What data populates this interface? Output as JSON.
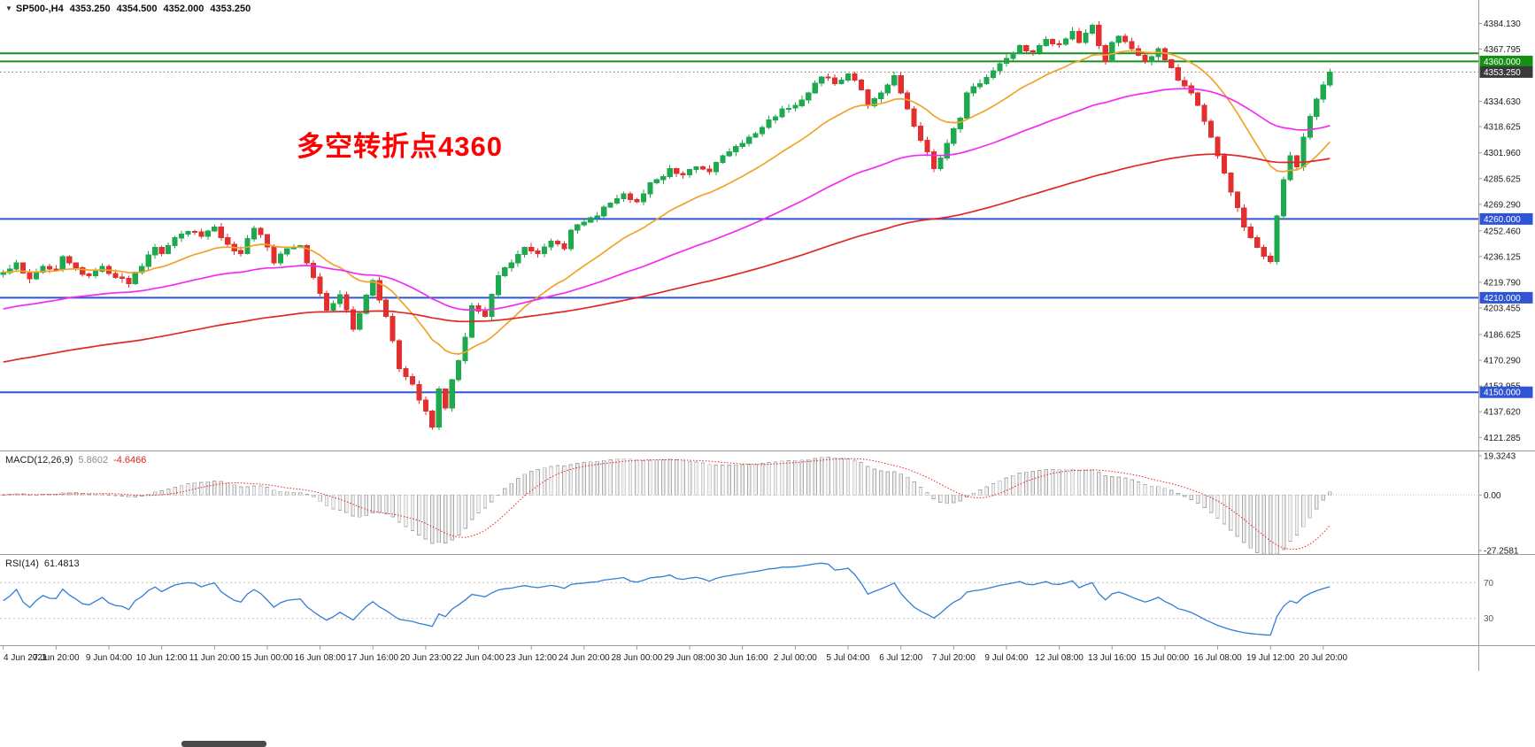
{
  "window": {
    "symbol_line": {
      "icon": "▼",
      "symbol": "SP500-,H4",
      "open": "4353.250",
      "high": "4354.500",
      "low": "4352.000",
      "close": "4353.250"
    },
    "annotation": {
      "text": "多空转折点4360",
      "color": "#ff0000"
    }
  },
  "chart_data": {
    "type": "candlestick",
    "symbol": "SP500-",
    "timeframe": "H4",
    "slots": 224,
    "bars": 202,
    "noise_amp": 1.6,
    "colors": {
      "up": "#1fa94e",
      "down": "#e23030",
      "axis_text": "#1b1b1b",
      "separator": "#9a9a9a"
    },
    "y_axis": {
      "min": 4113,
      "max": 4399,
      "ticks": [
        [
          "4384.130",
          4384.13,
          "plain"
        ],
        [
          "4367.795",
          4367.795,
          "plain"
        ],
        [
          "4360.000",
          4360.0,
          "green"
        ],
        [
          "4353.250",
          4353.25,
          "current"
        ],
        [
          "4334.630",
          4334.63,
          "plain"
        ],
        [
          "4318.625",
          4318.625,
          "plain"
        ],
        [
          "4301.960",
          4301.96,
          "plain"
        ],
        [
          "4285.625",
          4285.625,
          "plain"
        ],
        [
          "4269.290",
          4269.29,
          "plain"
        ],
        [
          "4260.000",
          4260.0,
          "blue"
        ],
        [
          "4252.460",
          4252.46,
          "plain"
        ],
        [
          "4236.125",
          4236.125,
          "plain"
        ],
        [
          "4219.790",
          4219.79,
          "plain"
        ],
        [
          "4210.000",
          4210.0,
          "blue"
        ],
        [
          "4203.455",
          4203.455,
          "plain"
        ],
        [
          "4186.625",
          4186.625,
          "plain"
        ],
        [
          "4170.290",
          4170.29,
          "plain"
        ],
        [
          "4153.955",
          4153.955,
          "plain"
        ],
        [
          "4150.000",
          4150.0,
          "blue"
        ],
        [
          "4137.620",
          4137.62,
          "plain"
        ],
        [
          "4121.285",
          4121.285,
          "plain"
        ]
      ]
    },
    "levels": [
      {
        "price": 4365.2,
        "color": "#1a8f1a",
        "width": 2,
        "badge": null,
        "badge_color": null
      },
      {
        "price": 4360.0,
        "color": "#1a8f1a",
        "width": 2,
        "badge": "4360.000",
        "badge_color": "#149114"
      },
      {
        "price": 4260.0,
        "color": "#2f55d4",
        "width": 2,
        "badge": "4260.000",
        "badge_color": "#2f55d4"
      },
      {
        "price": 4210.0,
        "color": "#2f55d4",
        "width": 2,
        "badge": "4210.000",
        "badge_color": "#2f55d4"
      },
      {
        "price": 4150.0,
        "color": "#2f55d4",
        "width": 2,
        "badge": "4150.000",
        "badge_color": "#2f55d4"
      }
    ],
    "current_price": {
      "value": 4353.25,
      "label": "4353.250",
      "badge_color": "#3a3a3a",
      "line_color": "#a06060"
    },
    "moving_averages": [
      {
        "name": "ma-fast",
        "period": 20,
        "color": "#efa32a",
        "seed": null
      },
      {
        "name": "ma-medium",
        "period": 64,
        "color": "#f32cf3",
        "seed": 4165
      },
      {
        "name": "ma-slow",
        "period": 150,
        "color": "#e02828",
        "seed": 4140
      }
    ],
    "price_anchors": [
      [
        0,
        4226
      ],
      [
        2,
        4232
      ],
      [
        4,
        4222
      ],
      [
        6,
        4230
      ],
      [
        8,
        4228
      ],
      [
        9,
        4236
      ],
      [
        11,
        4229
      ],
      [
        13,
        4224
      ],
      [
        15,
        4230
      ],
      [
        17,
        4223
      ],
      [
        19,
        4219
      ],
      [
        21,
        4230
      ],
      [
        23,
        4242
      ],
      [
        24,
        4238
      ],
      [
        26,
        4248
      ],
      [
        28,
        4252
      ],
      [
        30,
        4249
      ],
      [
        32,
        4255
      ],
      [
        34,
        4244
      ],
      [
        36,
        4238
      ],
      [
        38,
        4254
      ],
      [
        39,
        4250
      ],
      [
        41,
        4232
      ],
      [
        43,
        4241
      ],
      [
        45,
        4243
      ],
      [
        47,
        4223
      ],
      [
        49,
        4202
      ],
      [
        51,
        4212
      ],
      [
        53,
        4190
      ],
      [
        54,
        4200
      ],
      [
        56,
        4221
      ],
      [
        58,
        4198
      ],
      [
        60,
        4165
      ],
      [
        62,
        4155
      ],
      [
        64,
        4138
      ],
      [
        65,
        4128
      ],
      [
        66,
        4152
      ],
      [
        67,
        4140
      ],
      [
        68,
        4158
      ],
      [
        70,
        4185
      ],
      [
        71,
        4205
      ],
      [
        73,
        4198
      ],
      [
        75,
        4224
      ],
      [
        77,
        4232
      ],
      [
        79,
        4242
      ],
      [
        81,
        4238
      ],
      [
        83,
        4246
      ],
      [
        85,
        4241
      ],
      [
        86,
        4253
      ],
      [
        88,
        4258
      ],
      [
        90,
        4262
      ],
      [
        92,
        4270
      ],
      [
        94,
        4276
      ],
      [
        96,
        4271
      ],
      [
        98,
        4283
      ],
      [
        100,
        4287
      ],
      [
        101,
        4292
      ],
      [
        103,
        4288
      ],
      [
        105,
        4293
      ],
      [
        107,
        4290
      ],
      [
        109,
        4300
      ],
      [
        111,
        4306
      ],
      [
        113,
        4312
      ],
      [
        115,
        4318
      ],
      [
        116,
        4323
      ],
      [
        118,
        4330
      ],
      [
        120,
        4332
      ],
      [
        122,
        4340
      ],
      [
        124,
        4350
      ],
      [
        126,
        4346
      ],
      [
        128,
        4352
      ],
      [
        130,
        4342
      ],
      [
        131,
        4332
      ],
      [
        133,
        4340
      ],
      [
        135,
        4351
      ],
      [
        137,
        4330
      ],
      [
        139,
        4310
      ],
      [
        141,
        4292
      ],
      [
        143,
        4308
      ],
      [
        145,
        4324
      ],
      [
        146,
        4340
      ],
      [
        148,
        4346
      ],
      [
        150,
        4354
      ],
      [
        152,
        4362
      ],
      [
        154,
        4370
      ],
      [
        156,
        4366
      ],
      [
        158,
        4374
      ],
      [
        160,
        4371
      ],
      [
        162,
        4379
      ],
      [
        163,
        4372
      ],
      [
        165,
        4383
      ],
      [
        166,
        4370
      ],
      [
        167,
        4360
      ],
      [
        168,
        4372
      ],
      [
        169,
        4376
      ],
      [
        171,
        4368
      ],
      [
        173,
        4360
      ],
      [
        175,
        4368
      ],
      [
        177,
        4356
      ],
      [
        178,
        4348
      ],
      [
        180,
        4340
      ],
      [
        182,
        4322
      ],
      [
        184,
        4300
      ],
      [
        186,
        4277
      ],
      [
        188,
        4255
      ],
      [
        190,
        4242
      ],
      [
        192,
        4233
      ],
      [
        193,
        4262
      ],
      [
        194,
        4285
      ],
      [
        195,
        4300
      ],
      [
        196,
        4293
      ],
      [
        197,
        4312
      ],
      [
        198,
        4325
      ],
      [
        199,
        4336
      ],
      [
        200,
        4345
      ],
      [
        201,
        4353.25
      ]
    ],
    "time_axis": {
      "bars_per_label": 8,
      "labels": [
        "4 Jun 2021",
        "7 Jun 20:00",
        "9 Jun 04:00",
        "10 Jun 12:00",
        "11 Jun 20:00",
        "15 Jun 00:00",
        "16 Jun 08:00",
        "17 Jun 16:00",
        "20 Jun 23:00",
        "22 Jun 04:00",
        "23 Jun 12:00",
        "24 Jun 20:00",
        "28 Jun 00:00",
        "29 Jun 08:00",
        "30 Jun 16:00",
        "2 Jul 00:00",
        "5 Jul 04:00",
        "6 Jul 12:00",
        "7 Jul 20:00",
        "9 Jul 04:00",
        "12 Jul 08:00",
        "13 Jul 16:00",
        "15 Jul 00:00",
        "16 Jul 08:00",
        "19 Jul 12:00",
        "20 Jul 20:00"
      ]
    },
    "indicators": {
      "macd": {
        "title": "MACD(12,26,9)",
        "value_main": "5.8602",
        "value_signal": "-4.6466",
        "params": [
          12,
          26,
          9
        ],
        "axis_labels": [
          [
            "19.3243",
            19.3243
          ],
          [
            "0.00",
            0
          ],
          [
            "-27.2581",
            -27.2581
          ]
        ],
        "scale_max": 21,
        "scale_min": -29,
        "hist_fill": "#f0f0f0",
        "hist_stroke": "#a9a9a9",
        "signal_color": "#f02020"
      },
      "rsi": {
        "title": "RSI(14)",
        "value": "61.4813",
        "period": 14,
        "levels": [
          70,
          30
        ],
        "level_labels": [
          "70",
          "30"
        ],
        "scale_max": 100,
        "scale_min": 0,
        "line_color": "#2f7ed8",
        "level_color": "#bdbdbd"
      }
    }
  }
}
